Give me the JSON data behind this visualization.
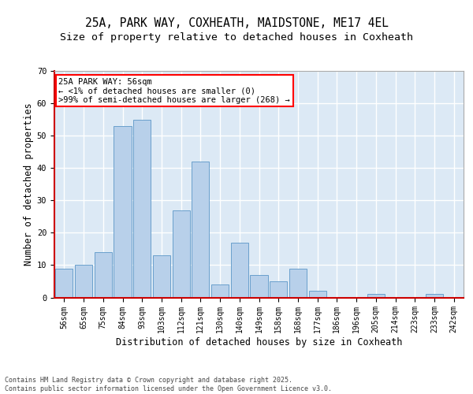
{
  "title_line1": "25A, PARK WAY, COXHEATH, MAIDSTONE, ME17 4EL",
  "title_line2": "Size of property relative to detached houses in Coxheath",
  "xlabel": "Distribution of detached houses by size in Coxheath",
  "ylabel": "Number of detached properties",
  "categories": [
    "56sqm",
    "65sqm",
    "75sqm",
    "84sqm",
    "93sqm",
    "103sqm",
    "112sqm",
    "121sqm",
    "130sqm",
    "140sqm",
    "149sqm",
    "158sqm",
    "168sqm",
    "177sqm",
    "186sqm",
    "196sqm",
    "205sqm",
    "214sqm",
    "223sqm",
    "233sqm",
    "242sqm"
  ],
  "values": [
    9,
    10,
    14,
    53,
    55,
    13,
    27,
    42,
    4,
    17,
    7,
    5,
    9,
    2,
    0,
    0,
    1,
    0,
    0,
    1,
    0
  ],
  "bar_color": "#b8d0ea",
  "bar_edge_color": "#6aa0cc",
  "ylim": [
    0,
    70
  ],
  "yticks": [
    0,
    10,
    20,
    30,
    40,
    50,
    60,
    70
  ],
  "background_color": "#dce9f5",
  "plot_bg_color": "#dce9f5",
  "fig_bg_color": "#ffffff",
  "grid_color": "#ffffff",
  "annotation_text": "25A PARK WAY: 56sqm\n← <1% of detached houses are smaller (0)\n>99% of semi-detached houses are larger (268) →",
  "footer_text": "Contains HM Land Registry data © Crown copyright and database right 2025.\nContains public sector information licensed under the Open Government Licence v3.0.",
  "title_fontsize": 10.5,
  "subtitle_fontsize": 9.5,
  "axis_label_fontsize": 8.5,
  "tick_fontsize": 7,
  "annotation_fontsize": 7.5,
  "footer_fontsize": 6
}
